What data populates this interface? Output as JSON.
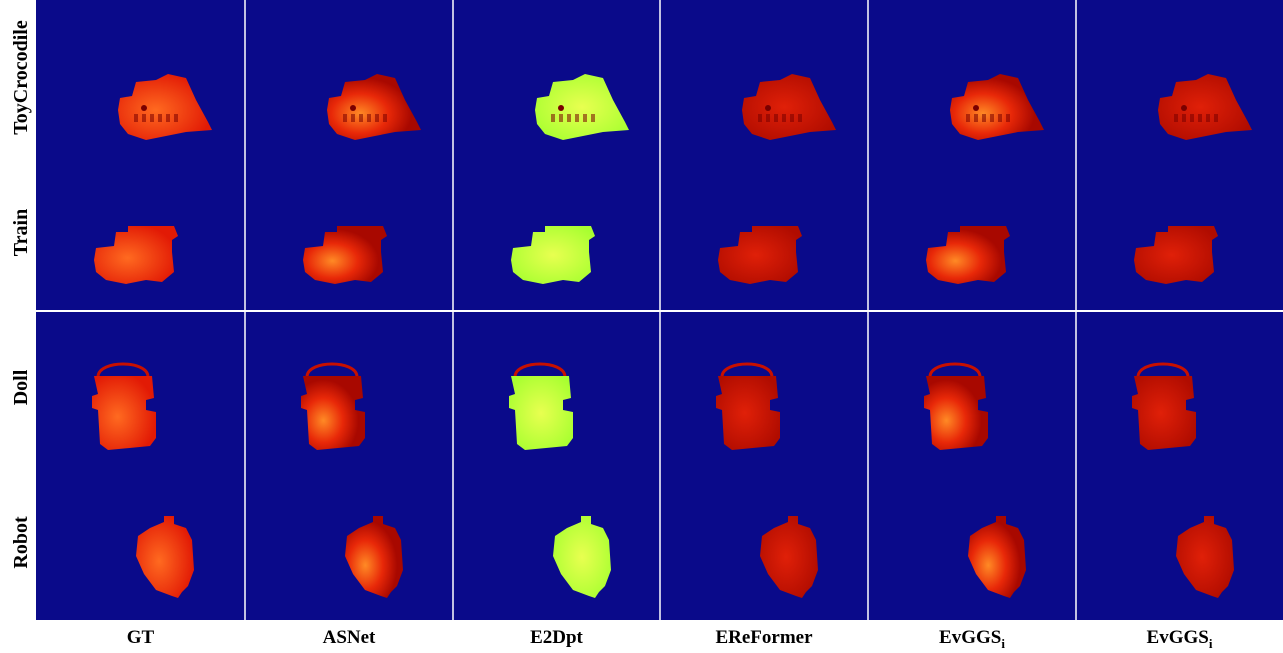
{
  "figure": {
    "background_color": "#0a0a8a",
    "object_color_near": "#ff3a10",
    "object_color_mid": "#c81000",
    "object_color_error": "#c8ff40",
    "rows": [
      {
        "label": "ToyCrocodile",
        "shape": "crocodile"
      },
      {
        "label": "Train",
        "shape": "train"
      },
      {
        "label": "Doll",
        "shape": "doll"
      },
      {
        "label": "Robot",
        "shape": "robot"
      }
    ],
    "columns": [
      {
        "label": "GT",
        "subscript": "",
        "tint": "near"
      },
      {
        "label": "ASNet",
        "subscript": "",
        "tint": "mixed"
      },
      {
        "label": "E2Dpt",
        "subscript": "",
        "tint": "error"
      },
      {
        "label": "EReFormer",
        "subscript": "",
        "tint": "mid"
      },
      {
        "label": "EvGGS",
        "subscript": "i",
        "tint": "mixed"
      },
      {
        "label": "EvGGS",
        "subscript": "i",
        "tint": "mid"
      }
    ]
  }
}
